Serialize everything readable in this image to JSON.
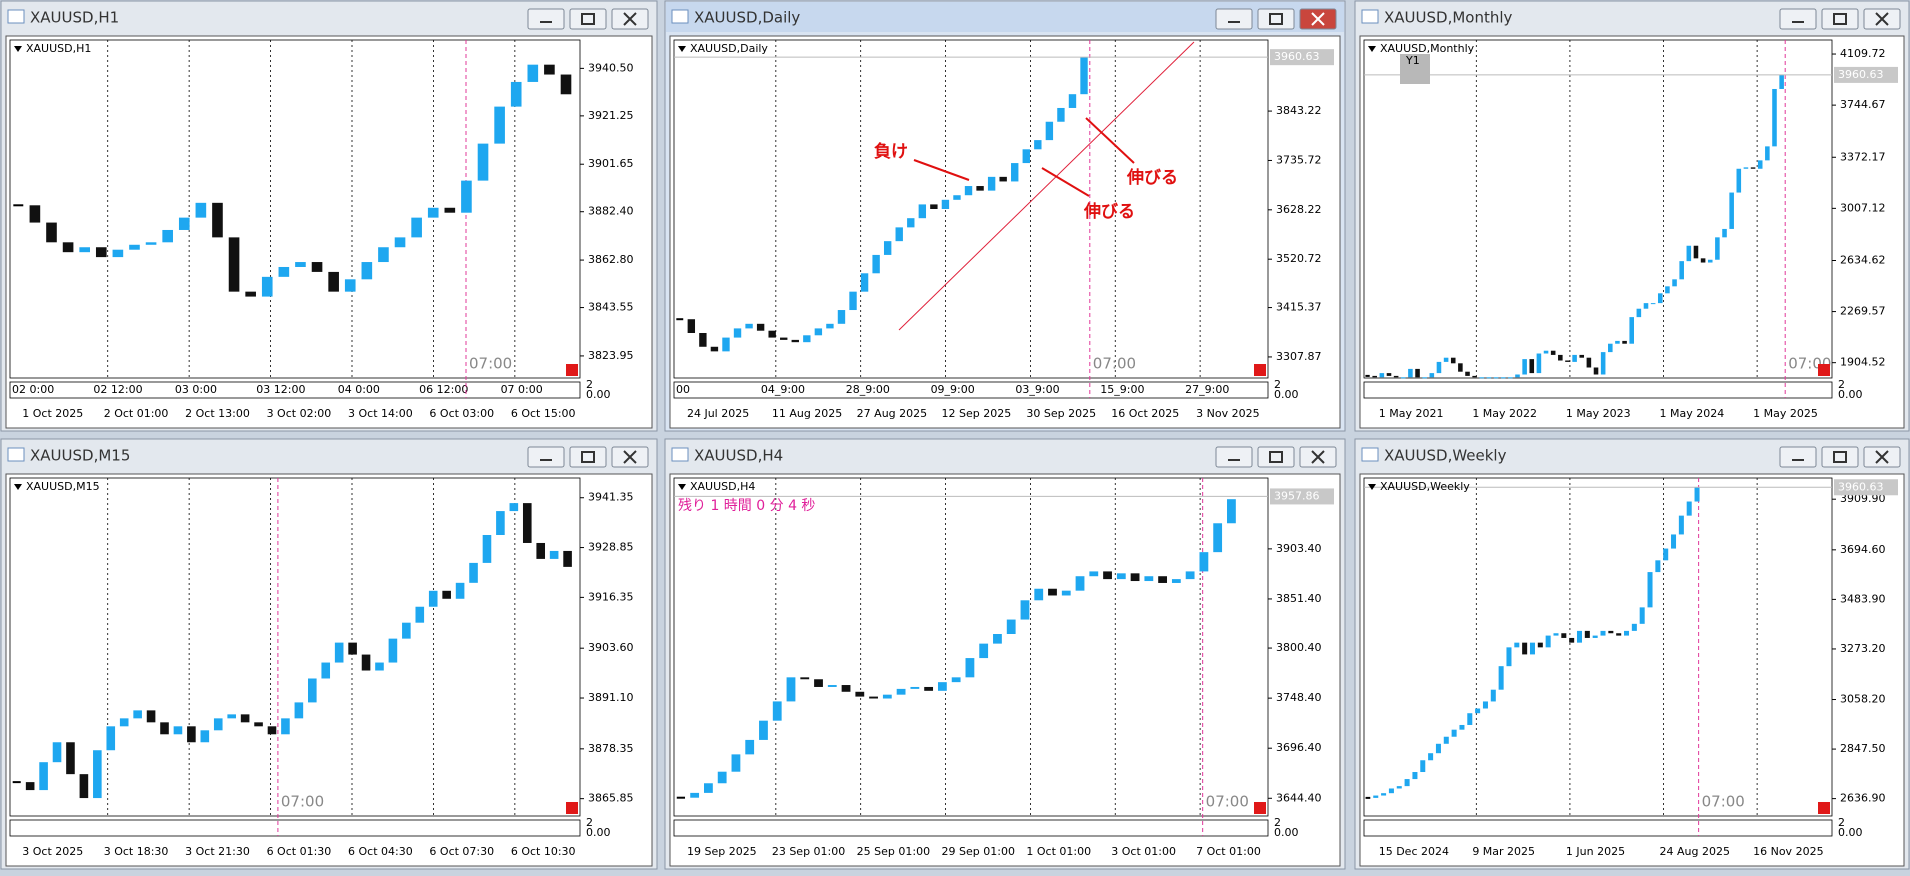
{
  "windows": [
    {
      "title": "XAUUSD,H1",
      "label": "XAUUSD,H1",
      "ylim": [
        3815,
        3952
      ],
      "yticks": [
        {
          "value": 3940.5,
          "label": "3940.50"
        },
        {
          "value": 3921.25,
          "label": "3921.25"
        },
        {
          "value": 3901.65,
          "label": "3901.65"
        },
        {
          "value": 3882.4,
          "label": "3882.40"
        },
        {
          "value": 3862.8,
          "label": "3862.80"
        },
        {
          "value": 3843.55,
          "label": "3843.55"
        },
        {
          "value": 3823.95,
          "label": "3823.95"
        }
      ],
      "xlabels": [
        "1 Oct 2025",
        "2 Oct 01:00",
        "2 Oct 13:00",
        "3 Oct 02:00",
        "3 Oct 14:00",
        "6 Oct 03:00",
        "6 Oct 15:00"
      ],
      "separator_labels": [
        "02 0:00",
        "02 12:00",
        "03 0:00",
        "03 12:00",
        "04 0:00",
        "06 12:00",
        "07 0:00"
      ],
      "time_label": "07:00",
      "sub_labels": [
        "2",
        "0.00"
      ],
      "closes": [
        3885,
        3878,
        3870,
        3866,
        3868,
        3864,
        3867,
        3869,
        3870,
        3875,
        3880,
        3886,
        3872,
        3850,
        3848,
        3856,
        3860,
        3862,
        3858,
        3850,
        3855,
        3862,
        3868,
        3872,
        3880,
        3884,
        3882,
        3895,
        3910,
        3925,
        3935,
        3942,
        3938,
        3930
      ]
    },
    {
      "title": "XAUUSD,Daily",
      "label": "XAUUSD,Daily",
      "ylim": [
        3262,
        3998
      ],
      "yticks": [
        {
          "value": 3843.22,
          "label": "3843.22"
        },
        {
          "value": 3735.72,
          "label": "3735.72"
        },
        {
          "value": 3628.22,
          "label": "3628.22"
        },
        {
          "value": 3520.72,
          "label": "3520.72"
        },
        {
          "value": 3415.37,
          "label": "3415.37"
        },
        {
          "value": 3307.87,
          "label": "3307.87"
        }
      ],
      "price_label": {
        "value": 3960.63,
        "label": "3960.63"
      },
      "xlabels": [
        "24 Jul 2025",
        "11 Aug 2025",
        "27 Aug 2025",
        "12 Sep 2025",
        "30 Sep 2025",
        "16 Oct 2025",
        "3 Nov 2025"
      ],
      "separator_labels": [
        "00",
        "04_9:00",
        "28_9:00",
        "09_9:00",
        "03_9:00",
        "15_9:00",
        "27_9:00"
      ],
      "time_label": "07:00",
      "sub_labels": [
        "2",
        "0.00"
      ],
      "annotations": [
        "負け",
        "伸びる",
        "伸びる"
      ],
      "closes": [
        3390,
        3360,
        3330,
        3320,
        3350,
        3370,
        3380,
        3365,
        3350,
        3345,
        3340,
        3355,
        3370,
        3380,
        3410,
        3450,
        3490,
        3530,
        3560,
        3590,
        3610,
        3640,
        3630,
        3650,
        3660,
        3680,
        3670,
        3700,
        3690,
        3730,
        3760,
        3780,
        3820,
        3850,
        3880,
        3960
      ]
    },
    {
      "title": "XAUUSD,Monthly",
      "label": "XAUUSD,Monthly",
      "ylim": [
        1795,
        4210
      ],
      "extra_label": "Y1",
      "yticks": [
        {
          "value": 4109.72,
          "label": "4109.72"
        },
        {
          "value": 3744.67,
          "label": "3744.67"
        },
        {
          "value": 3372.17,
          "label": "3372.17"
        },
        {
          "value": 3007.12,
          "label": "3007.12"
        },
        {
          "value": 2634.62,
          "label": "2634.62"
        },
        {
          "value": 2269.57,
          "label": "2269.57"
        },
        {
          "value": 1904.52,
          "label": "1904.52"
        }
      ],
      "price_label": {
        "value": 3960.63,
        "label": "3960.63"
      },
      "xlabels": [
        "1 May 2021",
        "1 May 2022",
        "1 May 2023",
        "1 May 2024",
        "1 May 2025"
      ],
      "time_label": "07:00",
      "sub_labels": [
        "2",
        "0.00"
      ],
      "closes": [
        1810,
        1800,
        1830,
        1810,
        1800,
        1800,
        1860,
        1800,
        1800,
        1830,
        1910,
        1940,
        1900,
        1840,
        1810,
        1800,
        1800,
        1800,
        1800,
        1800,
        1800,
        1820,
        1930,
        1830,
        1970,
        1990,
        1960,
        1920,
        1910,
        1960,
        1940,
        1870,
        1820,
        1980,
        2040,
        2060,
        2040,
        2230,
        2290,
        2330,
        2330,
        2400,
        2450,
        2500,
        2630,
        2740,
        2650,
        2620,
        2640,
        2800,
        2860,
        3120,
        3290,
        3300,
        3290,
        3350,
        3450,
        3860,
        3960
      ]
    },
    {
      "title": "XAUUSD,M15",
      "label": "XAUUSD,M15",
      "ylim": [
        3861.5,
        3946.3
      ],
      "yticks": [
        {
          "value": 3941.35,
          "label": "3941.35"
        },
        {
          "value": 3928.85,
          "label": "3928.85"
        },
        {
          "value": 3916.35,
          "label": "3916.35"
        },
        {
          "value": 3903.6,
          "label": "3903.60"
        },
        {
          "value": 3891.1,
          "label": "3891.10"
        },
        {
          "value": 3878.35,
          "label": "3878.35"
        },
        {
          "value": 3865.85,
          "label": "3865.85"
        }
      ],
      "xlabels": [
        "3 Oct 2025",
        "3 Oct 18:30",
        "3 Oct 21:30",
        "6 Oct 01:30",
        "6 Oct 04:30",
        "6 Oct 07:30",
        "6 Oct 10:30"
      ],
      "time_label": "07:00",
      "sub_labels": [
        "2",
        "0.00"
      ],
      "closes": [
        3870,
        3868,
        3875,
        3880,
        3872,
        3866,
        3878,
        3884,
        3886,
        3888,
        3885,
        3882,
        3884,
        3880,
        3883,
        3886,
        3887,
        3885,
        3884,
        3882,
        3886,
        3890,
        3896,
        3900,
        3905,
        3902,
        3898,
        3900,
        3906,
        3910,
        3914,
        3918,
        3916,
        3920,
        3925,
        3932,
        3938,
        3940,
        3930,
        3926,
        3928,
        3924
      ]
    },
    {
      "title": "XAUUSD,H4",
      "label": "XAUUSD,H4",
      "ylim": [
        3626,
        3977
      ],
      "countdown": "残り 1 時間 0 分 4 秒",
      "yticks": [
        {
          "value": 3903.4,
          "label": "3903.40"
        },
        {
          "value": 3851.4,
          "label": "3851.40"
        },
        {
          "value": 3800.4,
          "label": "3800.40"
        },
        {
          "value": 3748.4,
          "label": "3748.40"
        },
        {
          "value": 3696.4,
          "label": "3696.40"
        },
        {
          "value": 3644.4,
          "label": "3644.40"
        }
      ],
      "price_label": {
        "value": 3957.86,
        "label": "3957.86"
      },
      "xlabels": [
        "19 Sep 2025",
        "23 Sep 01:00",
        "25 Sep 01:00",
        "29 Sep 01:00",
        "1 Oct 01:00",
        "3 Oct 01:00",
        "7 Oct 01:00"
      ],
      "time_label": "07:00",
      "sub_labels": [
        "2",
        "0.00"
      ],
      "closes": [
        3645,
        3650,
        3660,
        3672,
        3690,
        3705,
        3725,
        3745,
        3770,
        3768,
        3760,
        3762,
        3755,
        3750,
        3748,
        3752,
        3758,
        3760,
        3756,
        3765,
        3770,
        3790,
        3805,
        3815,
        3830,
        3850,
        3862,
        3855,
        3860,
        3875,
        3880,
        3872,
        3878,
        3870,
        3875,
        3868,
        3872,
        3880,
        3900,
        3930,
        3955
      ]
    },
    {
      "title": "XAUUSD,Weekly",
      "label": "XAUUSD,Weekly",
      "ylim": [
        2563,
        4000
      ],
      "yticks": [
        {
          "value": 3909.9,
          "label": "3909.90"
        },
        {
          "value": 3694.6,
          "label": "3694.60"
        },
        {
          "value": 3483.9,
          "label": "3483.90"
        },
        {
          "value": 3273.2,
          "label": "3273.20"
        },
        {
          "value": 3058.2,
          "label": "3058.20"
        },
        {
          "value": 2847.5,
          "label": "2847.50"
        },
        {
          "value": 2636.9,
          "label": "2636.90"
        }
      ],
      "price_label": {
        "value": 3960.63,
        "label": "3960.63"
      },
      "xlabels": [
        "15 Dec 2024",
        "9 Mar 2025",
        "1 Jun 2025",
        "24 Aug 2025",
        "16 Nov 2025"
      ],
      "time_label": "07:00",
      "sub_labels": [
        "2",
        "0.00"
      ],
      "closes": [
        2640,
        2650,
        2660,
        2680,
        2690,
        2720,
        2750,
        2800,
        2830,
        2870,
        2900,
        2930,
        2950,
        3000,
        3020,
        3050,
        3100,
        3200,
        3280,
        3300,
        3250,
        3300,
        3280,
        3330,
        3340,
        3320,
        3300,
        3350,
        3320,
        3330,
        3350,
        3340,
        3330,
        3350,
        3380,
        3450,
        3600,
        3650,
        3700,
        3760,
        3840,
        3900,
        3960
      ]
    }
  ]
}
